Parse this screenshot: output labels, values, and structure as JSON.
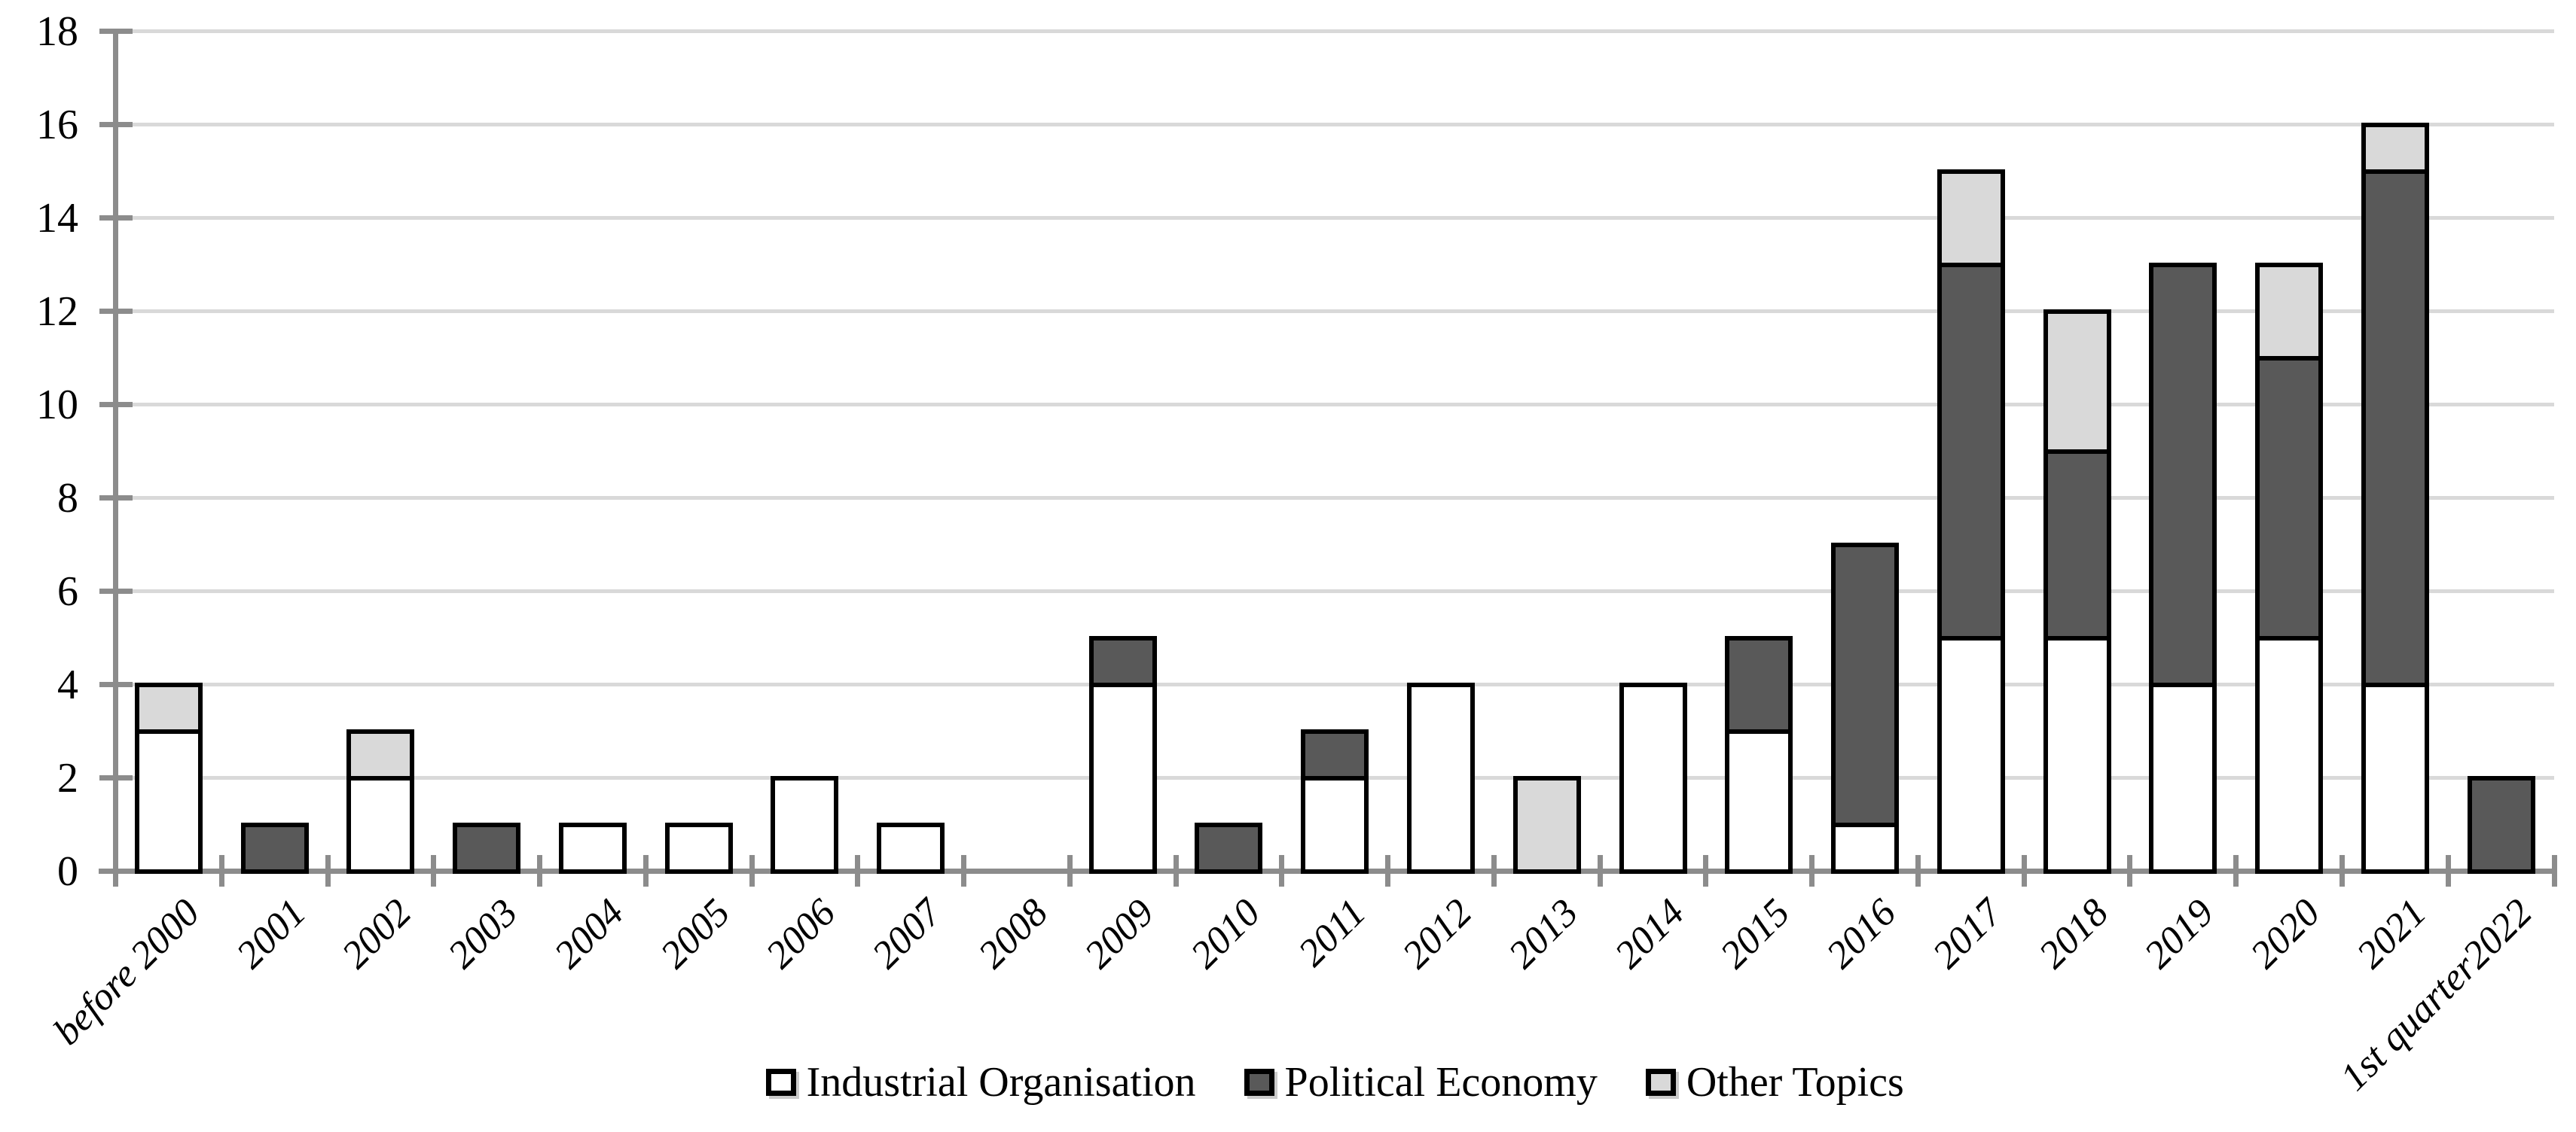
{
  "figure": {
    "background": "#ffffff",
    "text_color": "#000000"
  },
  "chart_data": {
    "type": "bar",
    "stacked": true,
    "orientation": "vertical",
    "title": "",
    "xlabel": "",
    "ylabel": "",
    "categories": [
      "before 2000",
      "2001",
      "2002",
      "2003",
      "2004",
      "2005",
      "2006",
      "2007",
      "2008",
      "2009",
      "2010",
      "2011",
      "2012",
      "2013",
      "2014",
      "2015",
      "2016",
      "2017",
      "2018",
      "2019",
      "2020",
      "2021",
      "1st quarter2022"
    ],
    "series": [
      {
        "name": "Industrial Organisation",
        "color": "#ffffff",
        "values": [
          3,
          0,
          2,
          0,
          1,
          1,
          2,
          1,
          0,
          4,
          0,
          2,
          4,
          0,
          4,
          3,
          1,
          5,
          5,
          4,
          5,
          4,
          0
        ]
      },
      {
        "name": "Political Economy",
        "color": "#595959",
        "values": [
          0,
          1,
          0,
          1,
          0,
          0,
          0,
          0,
          0,
          1,
          1,
          1,
          0,
          0,
          0,
          2,
          6,
          8,
          4,
          9,
          6,
          11,
          2
        ]
      },
      {
        "name": "Other Topics",
        "color": "#d9d9d9",
        "values": [
          1,
          0,
          1,
          0,
          0,
          0,
          0,
          0,
          0,
          0,
          0,
          0,
          0,
          2,
          0,
          0,
          0,
          2,
          3,
          0,
          2,
          1,
          0
        ]
      }
    ],
    "ylim": [
      0,
      18
    ],
    "ytick_step": 2,
    "y_tick_labels": [
      "0",
      "2",
      "4",
      "6",
      "8",
      "10",
      "12",
      "14",
      "16",
      "18"
    ],
    "grid": true,
    "legend_position": "bottom-center",
    "bar_border_color": "#000000",
    "axis_color": "#8c8c8c",
    "gridline_color": "#d9d9d9"
  }
}
